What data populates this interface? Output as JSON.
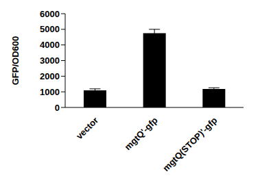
{
  "chart_data": {
    "type": "bar",
    "y_label": "GFP/OD600",
    "categories": [
      "vector",
      "mgtQ'-gfp",
      "mgtQ(STOP)'-gfp"
    ],
    "values": [
      1100,
      4750,
      1180
    ],
    "errors": [
      90,
      250,
      80
    ],
    "color": "#000000",
    "ylim": [
      0,
      6000
    ],
    "yticks": [
      0,
      1000,
      2000,
      3000,
      4000,
      5000,
      6000
    ],
    "grid": false
  }
}
